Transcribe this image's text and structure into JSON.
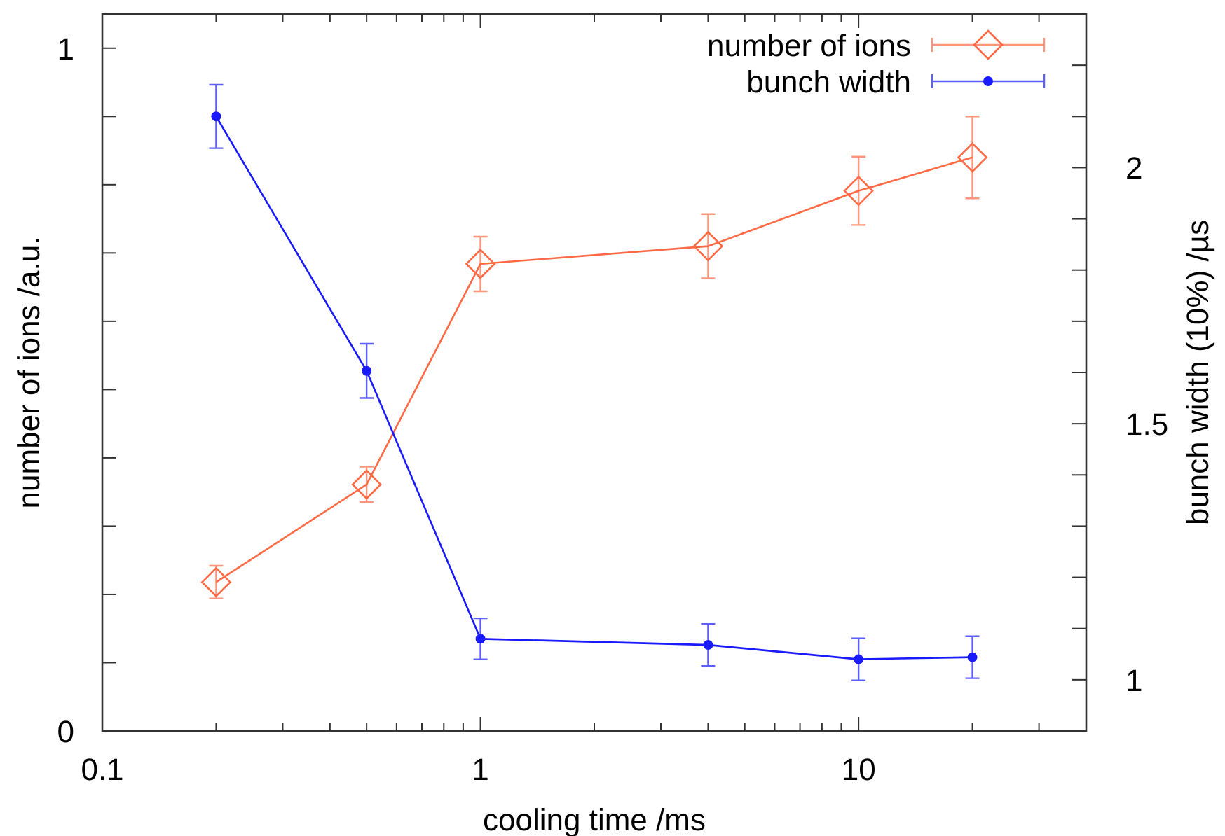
{
  "chart_data": {
    "type": "line",
    "xlabel": "cooling time /ms",
    "ylabel": "number of ions /a.u.",
    "y2label": "bunch width (10%) /µs",
    "log": "x",
    "legend": "top right",
    "line_style": "solid",
    "xlim": [
      0.1,
      40
    ],
    "ylim": [
      0,
      1.05
    ],
    "y2lim": [
      0.9,
      2.3
    ],
    "xticks": [
      0.1,
      {
        "value": 0.2,
        "label": null
      },
      {
        "value": 0.3,
        "label": null
      },
      {
        "value": 0.4,
        "label": null
      },
      {
        "value": 0.5,
        "label": null
      },
      {
        "value": 0.6,
        "label": null
      },
      {
        "value": 0.7,
        "label": null
      },
      {
        "value": 0.8,
        "label": null
      },
      {
        "value": 0.9,
        "label": null
      },
      1,
      {
        "value": 2,
        "label": null
      },
      {
        "value": 3,
        "label": null
      },
      {
        "value": 4,
        "label": null
      },
      {
        "value": 5,
        "label": null
      },
      {
        "value": 6,
        "label": null
      },
      {
        "value": 7,
        "label": null
      },
      {
        "value": 8,
        "label": null
      },
      {
        "value": 9,
        "label": null
      },
      10,
      {
        "value": 20,
        "label": null
      },
      {
        "value": 30,
        "label": null
      }
    ],
    "yticks": [
      0,
      {
        "value": 0.1,
        "label": null
      },
      {
        "value": 0.2,
        "label": null
      },
      {
        "value": 0.3,
        "label": null
      },
      {
        "value": 0.4,
        "label": null
      },
      {
        "value": 0.5,
        "label": null
      },
      {
        "value": 0.6,
        "label": null
      },
      {
        "value": 0.7,
        "label": null
      },
      {
        "value": 0.8,
        "label": null
      },
      {
        "value": 0.9,
        "label": null
      },
      1
    ],
    "y2ticks": [
      1,
      {
        "value": 1.1,
        "label": null
      },
      {
        "value": 1.2,
        "label": null
      },
      {
        "value": 1.3,
        "label": null
      },
      {
        "value": 1.4,
        "label": null
      },
      1.5,
      {
        "value": 1.6,
        "label": null
      },
      {
        "value": 1.7,
        "label": null
      },
      {
        "value": 1.8,
        "label": null
      },
      {
        "value": 1.9,
        "label": null
      },
      2,
      {
        "value": 2.1,
        "label": null
      },
      {
        "value": 2.2,
        "label": null
      }
    ],
    "x": [
      0.2,
      0.5,
      1,
      4,
      10,
      20
    ],
    "series": [
      {
        "name": "number of ions",
        "color": "#ff6a45",
        "marker": "diamond",
        "values": [
          0.218,
          0.361,
          0.684,
          0.71,
          0.791,
          0.84
        ],
        "errors": [
          0.024,
          0.026,
          0.04,
          0.047,
          0.05,
          0.06
        ]
      },
      {
        "name": "bunch width",
        "color": "#1a1aff",
        "marker": "circle",
        "axis": "y2",
        "values": [
          2.1,
          1.603,
          1.08,
          1.068,
          1.04,
          1.044
        ],
        "errors": [
          0.062,
          0.053,
          0.04,
          0.041,
          0.041,
          0.041
        ]
      }
    ]
  }
}
